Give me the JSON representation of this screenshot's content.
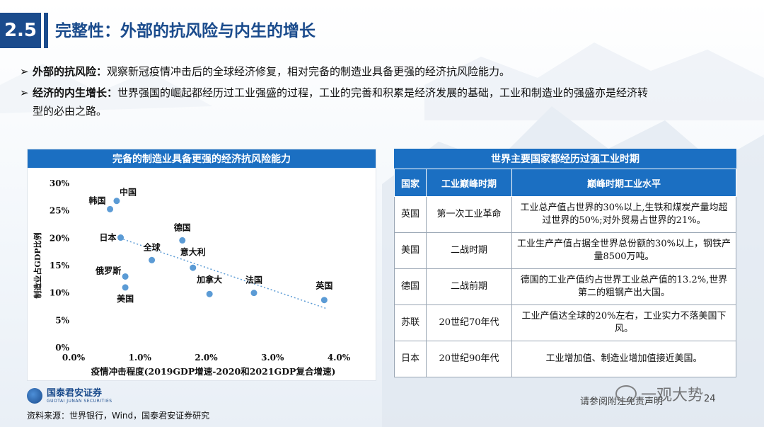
{
  "header": {
    "section_number": "2.5",
    "title": "完整性：外部的抗风险与内生的增长"
  },
  "bullets": [
    {
      "lead": "外部的抗风险：",
      "text": "观察新冠疫情冲击后的全球经济修复，相对完备的制造业具备更强的经济抗风险能力。"
    },
    {
      "lead": "经济的内生增长：",
      "text": "世界强国的崛起都经历过工业强盛的过程，工业的完善和积累是经济发展的基础，工业和制造业的强盛亦是经济转"
    },
    {
      "lead": "",
      "text": "型的必由之路。"
    }
  ],
  "chart_panel_title": "完备的制造业具备更强的经济抗风险能力",
  "chart_data": {
    "type": "scatter",
    "xlabel": "疫情冲击程度(2019GDP增速-2020和2021GDP复合增速)",
    "ylabel": "制造业占GDP比例",
    "xlim": [
      0,
      4.0
    ],
    "ylim": [
      0,
      30
    ],
    "x_ticks": [
      "0.0%",
      "1.0%",
      "2.0%",
      "3.0%",
      "4.0%"
    ],
    "y_ticks": [
      "0%",
      "5%",
      "10%",
      "15%",
      "20%",
      "25%",
      "30%"
    ],
    "trendline": true,
    "trend_from": [
      0.7,
      20
    ],
    "trend_to": [
      3.8,
      7.2
    ],
    "color": "#5b9bd5",
    "points": [
      {
        "label": "中国",
        "x": 0.65,
        "y": 26.8
      },
      {
        "label": "韩国",
        "x": 0.55,
        "y": 25.3
      },
      {
        "label": "日本",
        "x": 0.71,
        "y": 20.1
      },
      {
        "label": "德国",
        "x": 1.64,
        "y": 19.6
      },
      {
        "label": "全球",
        "x": 1.18,
        "y": 16.0
      },
      {
        "label": "意大利",
        "x": 1.8,
        "y": 14.6
      },
      {
        "label": "俄罗斯",
        "x": 0.78,
        "y": 13.0
      },
      {
        "label": "美国",
        "x": 0.78,
        "y": 11.0
      },
      {
        "label": "加拿大",
        "x": 2.05,
        "y": 9.8
      },
      {
        "label": "法国",
        "x": 2.72,
        "y": 10.0
      },
      {
        "label": "英国",
        "x": 3.78,
        "y": 8.7
      }
    ]
  },
  "table": {
    "title": "世界主要国家都经历过强工业时期",
    "headers": [
      "国家",
      "工业巅峰时期",
      "巅峰时期工业水平"
    ],
    "rows": [
      [
        "英国",
        "第一次工业革命",
        "工业总产值占世界的30%以上,生铁和煤炭产量均超过世界的50%;对外贸易占世界的21%。"
      ],
      [
        "美国",
        "二战时期",
        "工业生产产值占据全世界总份额的30%以上，钢铁产量8500万吨。"
      ],
      [
        "德国",
        "二战前期",
        "德国的工业产值约占世界工业总产值的13.2%,世界第二的粗钢产出大国。"
      ],
      [
        "苏联",
        "20世纪70年代",
        "工业产值达全球的20%左右，工业实力不落美国下风。"
      ],
      [
        "日本",
        "20世纪90年代",
        "工业增加值、制造业增加值接近美国。"
      ]
    ]
  },
  "footer": {
    "logo_cn": "国泰君安证券",
    "logo_en": "GUOTAI JUNAN SECURITIES",
    "source": "资料来源：世界银行，Wind，国泰君安证券研究",
    "note": "请参阅附注免责声明",
    "page": "24",
    "watermark": "一观大势"
  }
}
